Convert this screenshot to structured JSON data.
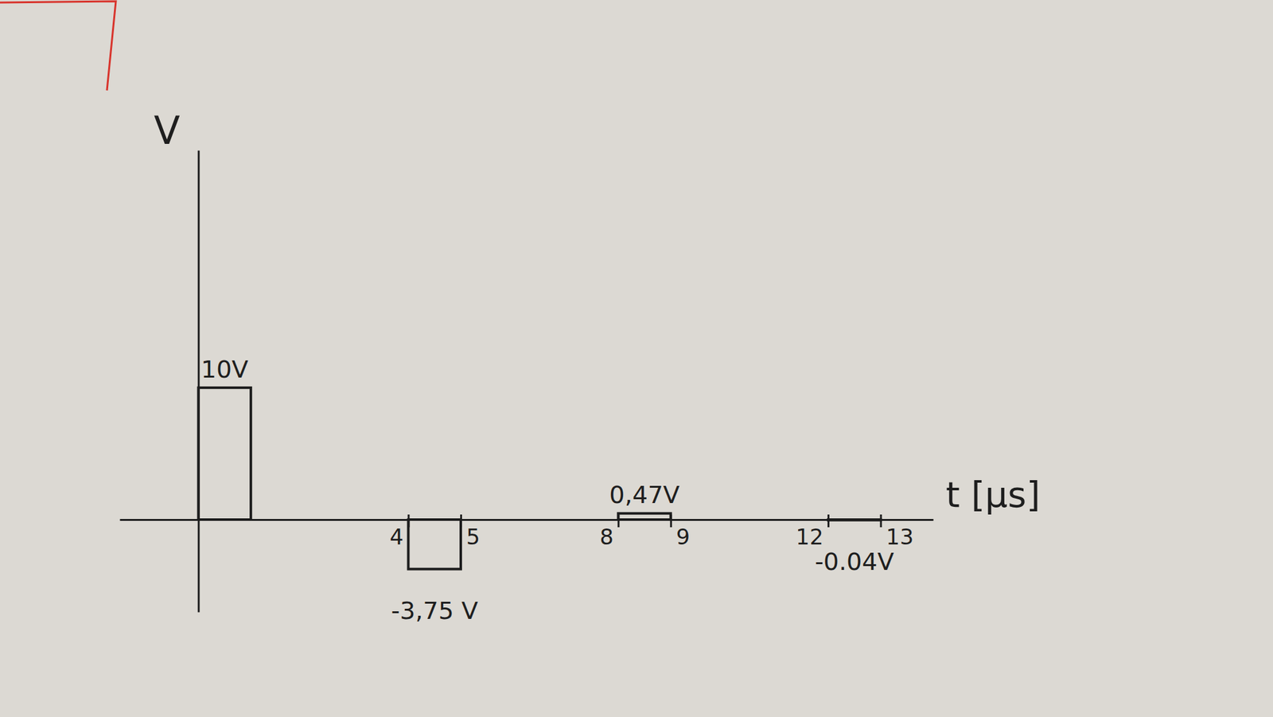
{
  "chart_data": {
    "type": "bar",
    "x_label": "t [µs]",
    "y_label": "V",
    "x": [
      0,
      4,
      8,
      12
    ],
    "x_end": [
      1,
      5,
      9,
      13
    ],
    "values": [
      10,
      -3.75,
      0.47,
      -0.04
    ],
    "value_labels": [
      "10V",
      "-3,75 V",
      "0,47V",
      "-0.04V"
    ],
    "data_labels": true,
    "xlim": [
      -1.5,
      14
    ],
    "ylim": [
      -7,
      28
    ],
    "xticks": [
      4,
      5,
      8,
      9,
      12,
      13
    ],
    "yticks": [],
    "tick_labels": "x",
    "color": "#1e1e1e"
  }
}
